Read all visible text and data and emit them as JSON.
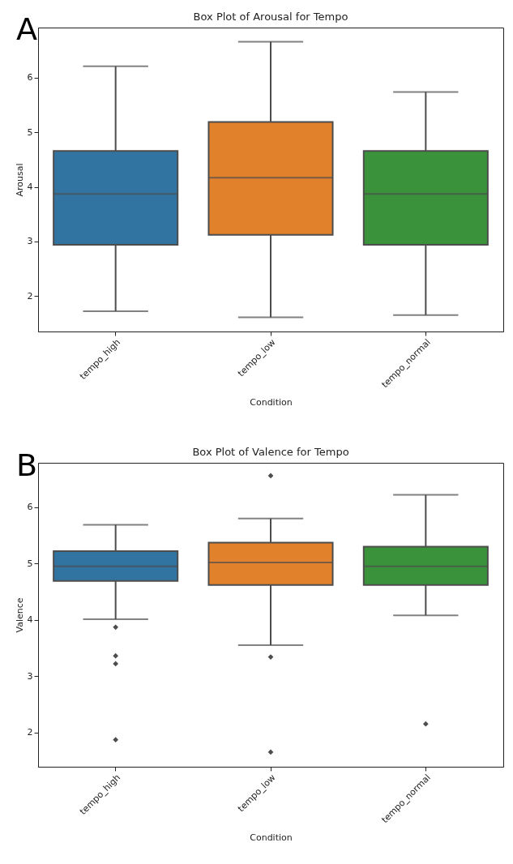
{
  "chart_data": [
    {
      "type": "box",
      "title": "Box Plot of Arousal for Tempo",
      "xlabel": "Condition",
      "ylabel": "Arousal",
      "annotations": [
        "A"
      ],
      "categories": [
        "tempo_high",
        "tempo_low",
        "tempo_normal"
      ],
      "colors": [
        "#3274a1",
        "#e1812c",
        "#3a923a"
      ],
      "ylim": [
        1.35,
        6.92
      ],
      "yticks": [
        2,
        3,
        4,
        5,
        6
      ],
      "grid": false,
      "boxes": [
        {
          "low": 1.72,
          "q1": 2.94,
          "median": 3.87,
          "q3": 4.66,
          "high": 6.21
        },
        {
          "low": 1.61,
          "q1": 3.12,
          "median": 4.17,
          "q3": 5.19,
          "high": 6.66
        },
        {
          "low": 1.65,
          "q1": 2.94,
          "median": 3.87,
          "q3": 4.66,
          "high": 5.74
        }
      ]
    },
    {
      "type": "box",
      "title": "Box Plot of Valence for Tempo",
      "xlabel": "Condition",
      "ylabel": "Valence",
      "annotations": [
        "B"
      ],
      "categories": [
        "tempo_high",
        "tempo_low",
        "tempo_normal"
      ],
      "colors": [
        "#3274a1",
        "#e1812c",
        "#3a923a"
      ],
      "ylim": [
        1.39,
        6.79
      ],
      "yticks": [
        2,
        3,
        4,
        5,
        6
      ],
      "grid": false,
      "marker": "diamond",
      "boxes": [
        {
          "low": 4.01,
          "q1": 4.69,
          "median": 4.95,
          "q3": 5.22,
          "high": 5.69,
          "outliers": [
            3.87,
            3.36,
            3.22,
            1.87
          ]
        },
        {
          "low": 3.55,
          "q1": 4.62,
          "median": 5.02,
          "q3": 5.37,
          "high": 5.8,
          "outliers": [
            6.56,
            3.34,
            1.65
          ]
        },
        {
          "low": 4.08,
          "q1": 4.62,
          "median": 4.95,
          "q3": 5.3,
          "high": 6.22,
          "outliers": [
            2.15
          ]
        }
      ]
    }
  ]
}
